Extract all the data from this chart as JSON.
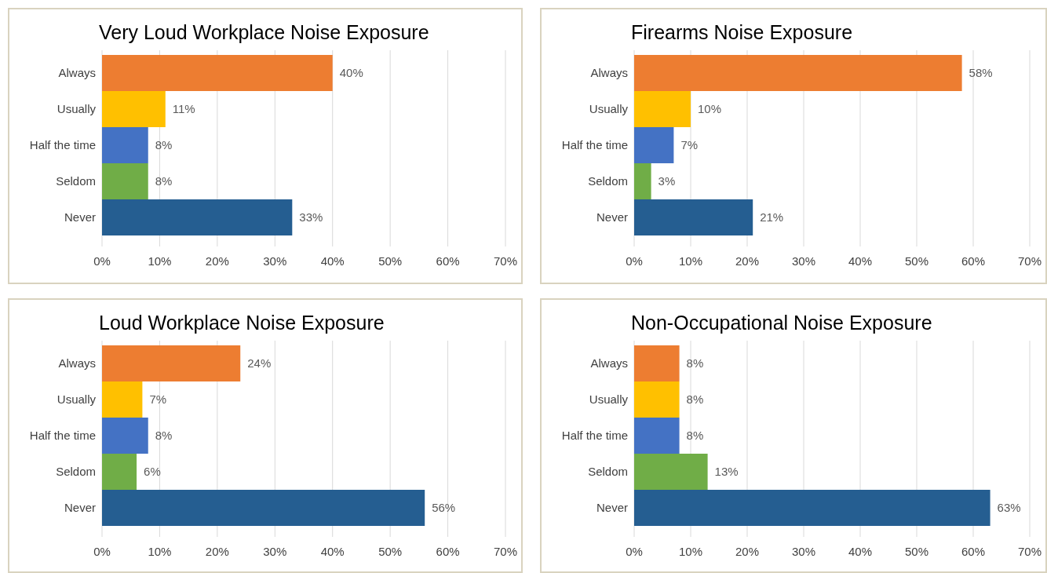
{
  "chart_data": [
    {
      "type": "bar",
      "orientation": "horizontal",
      "title": "Very Loud Workplace Noise Exposure",
      "categories": [
        "Always",
        "Usually",
        "Half the time",
        "Seldom",
        "Never"
      ],
      "values": [
        40,
        11,
        8,
        8,
        33
      ],
      "value_labels": [
        "40%",
        "11%",
        "8%",
        "8%",
        "33%"
      ],
      "colors": [
        "#ed7d31",
        "#ffc000",
        "#4472c4",
        "#70ad47",
        "#255e91"
      ],
      "xlim": [
        0,
        70
      ],
      "xticks": [
        {
          "value": 0,
          "label": "0%"
        },
        {
          "value": 10,
          "label": "10%"
        },
        {
          "value": 20,
          "label": "20%"
        },
        {
          "value": 30,
          "label": "30%"
        },
        {
          "value": 40,
          "label": "40%"
        },
        {
          "value": 50,
          "label": "50%"
        },
        {
          "value": 60,
          "label": "60%"
        },
        {
          "value": 70,
          "label": "70%"
        }
      ],
      "grid": "x"
    },
    {
      "type": "bar",
      "orientation": "horizontal",
      "title": "Firearms Noise Exposure",
      "categories": [
        "Always",
        "Usually",
        "Half the time",
        "Seldom",
        "Never"
      ],
      "values": [
        58,
        10,
        7,
        3,
        21
      ],
      "value_labels": [
        "58%",
        "10%",
        "7%",
        "3%",
        "21%"
      ],
      "colors": [
        "#ed7d31",
        "#ffc000",
        "#4472c4",
        "#70ad47",
        "#255e91"
      ],
      "xlim": [
        0,
        70
      ],
      "xticks": [
        {
          "value": 0,
          "label": "0%"
        },
        {
          "value": 10,
          "label": "10%"
        },
        {
          "value": 20,
          "label": "20%"
        },
        {
          "value": 30,
          "label": "30%"
        },
        {
          "value": 40,
          "label": "40%"
        },
        {
          "value": 50,
          "label": "50%"
        },
        {
          "value": 60,
          "label": "60%"
        },
        {
          "value": 70,
          "label": "70%"
        }
      ],
      "grid": "x"
    },
    {
      "type": "bar",
      "orientation": "horizontal",
      "title": "Loud Workplace Noise Exposure",
      "categories": [
        "Always",
        "Usually",
        "Half the time",
        "Seldom",
        "Never"
      ],
      "values": [
        24,
        7,
        8,
        6,
        56
      ],
      "value_labels": [
        "24%",
        "7%",
        "8%",
        "6%",
        "56%"
      ],
      "colors": [
        "#ed7d31",
        "#ffc000",
        "#4472c4",
        "#70ad47",
        "#255e91"
      ],
      "xlim": [
        0,
        70
      ],
      "xticks": [
        {
          "value": 0,
          "label": "0%"
        },
        {
          "value": 10,
          "label": "10%"
        },
        {
          "value": 20,
          "label": "20%"
        },
        {
          "value": 30,
          "label": "30%"
        },
        {
          "value": 40,
          "label": "40%"
        },
        {
          "value": 50,
          "label": "50%"
        },
        {
          "value": 60,
          "label": "60%"
        },
        {
          "value": 70,
          "label": "70%"
        }
      ],
      "grid": "x"
    },
    {
      "type": "bar",
      "orientation": "horizontal",
      "title": "Non-Occupational Noise Exposure",
      "categories": [
        "Always",
        "Usually",
        "Half the time",
        "Seldom",
        "Never"
      ],
      "values": [
        8,
        8,
        8,
        13,
        63
      ],
      "value_labels": [
        "8%",
        "8%",
        "8%",
        "13%",
        "63%"
      ],
      "colors": [
        "#ed7d31",
        "#ffc000",
        "#4472c4",
        "#70ad47",
        "#255e91"
      ],
      "xlim": [
        0,
        70
      ],
      "xticks": [
        {
          "value": 0,
          "label": "0%"
        },
        {
          "value": 10,
          "label": "10%"
        },
        {
          "value": 20,
          "label": "20%"
        },
        {
          "value": 30,
          "label": "30%"
        },
        {
          "value": 40,
          "label": "40%"
        },
        {
          "value": 50,
          "label": "50%"
        },
        {
          "value": 60,
          "label": "60%"
        },
        {
          "value": 70,
          "label": "70%"
        }
      ],
      "grid": "x"
    }
  ]
}
